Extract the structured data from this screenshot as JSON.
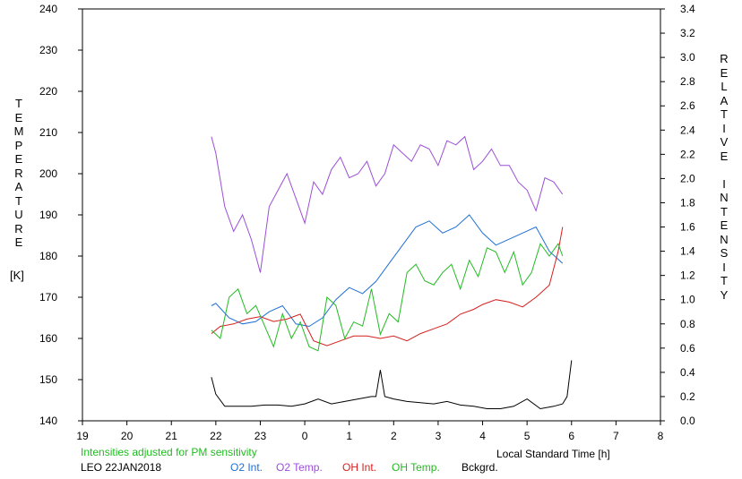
{
  "chart_data": {
    "type": "line",
    "xlabel": "Local Standard Time [h]",
    "ylabel_left": "TEMPERATURE",
    "ylabel_left_unit": "[K]",
    "ylabel_right": "RELATIVE INTENSITY",
    "x_ticks": [
      "19",
      "20",
      "21",
      "22",
      "23",
      "0",
      "1",
      "2",
      "3",
      "4",
      "5",
      "6",
      "7",
      "8"
    ],
    "y_left_ticks": [
      "140",
      "150",
      "160",
      "170",
      "180",
      "190",
      "200",
      "210",
      "220",
      "230",
      "240"
    ],
    "y_right_ticks": [
      "0.0",
      "0.2",
      "0.4",
      "0.6",
      "0.8",
      "1.0",
      "1.2",
      "1.4",
      "1.6",
      "1.8",
      "2.0",
      "2.2",
      "2.4",
      "2.6",
      "2.8",
      "3.0",
      "3.2",
      "3.4"
    ],
    "xlim": [
      19,
      32
    ],
    "ylim_left": [
      140,
      240
    ],
    "ylim_right": [
      0,
      3.4
    ],
    "grid": false,
    "series": [
      {
        "name": "O2 Int.",
        "axis": "right",
        "color": "#1f6fd6",
        "x": [
          21.9,
          22.0,
          22.3,
          22.6,
          22.9,
          23.2,
          23.5,
          23.8,
          24.1,
          24.4,
          24.7,
          25.0,
          25.3,
          25.6,
          25.9,
          26.2,
          26.5,
          26.8,
          27.1,
          27.4,
          27.7,
          28.0,
          28.3,
          28.6,
          28.9,
          29.2,
          29.5,
          29.8
        ],
        "y": [
          0.95,
          0.97,
          0.85,
          0.8,
          0.82,
          0.9,
          0.95,
          0.8,
          0.78,
          0.85,
          1.0,
          1.1,
          1.05,
          1.15,
          1.3,
          1.45,
          1.6,
          1.65,
          1.55,
          1.6,
          1.7,
          1.55,
          1.45,
          1.5,
          1.55,
          1.6,
          1.4,
          1.3
        ]
      },
      {
        "name": "O2 Temp.",
        "axis": "left",
        "color": "#9b4fd6",
        "x": [
          21.9,
          22.0,
          22.2,
          22.4,
          22.6,
          22.8,
          23.0,
          23.2,
          23.4,
          23.6,
          23.8,
          24.0,
          24.2,
          24.4,
          24.6,
          24.8,
          25.0,
          25.2,
          25.4,
          25.6,
          25.8,
          26.0,
          26.2,
          26.4,
          26.6,
          26.8,
          27.0,
          27.2,
          27.4,
          27.6,
          27.8,
          28.0,
          28.2,
          28.4,
          28.6,
          28.8,
          29.0,
          29.2,
          29.4,
          29.6,
          29.8
        ],
        "y": [
          209,
          205,
          192,
          186,
          190,
          184,
          176,
          192,
          196,
          200,
          194,
          188,
          198,
          195,
          201,
          204,
          199,
          200,
          203,
          197,
          200,
          207,
          205,
          203,
          207,
          206,
          202,
          208,
          207,
          209,
          201,
          203,
          206,
          202,
          202,
          198,
          196,
          191,
          199,
          198,
          195
        ]
      },
      {
        "name": "OH Int.",
        "axis": "right",
        "color": "#d61f1f",
        "x": [
          21.9,
          22.1,
          22.4,
          22.7,
          23.0,
          23.3,
          23.6,
          23.9,
          24.2,
          24.5,
          24.8,
          25.1,
          25.4,
          25.7,
          26.0,
          26.3,
          26.6,
          26.9,
          27.2,
          27.5,
          27.8,
          28.0,
          28.3,
          28.6,
          28.9,
          29.2,
          29.5,
          29.7,
          29.8
        ],
        "y": [
          0.72,
          0.78,
          0.8,
          0.84,
          0.86,
          0.82,
          0.84,
          0.88,
          0.66,
          0.62,
          0.66,
          0.7,
          0.7,
          0.68,
          0.7,
          0.66,
          0.72,
          0.76,
          0.8,
          0.88,
          0.92,
          0.96,
          1.0,
          0.98,
          0.94,
          1.02,
          1.12,
          1.4,
          1.6
        ]
      },
      {
        "name": "OH Temp.",
        "axis": "left",
        "color": "#22bb22",
        "x": [
          21.9,
          22.1,
          22.3,
          22.5,
          22.7,
          22.9,
          23.1,
          23.3,
          23.5,
          23.7,
          23.9,
          24.1,
          24.3,
          24.5,
          24.7,
          24.9,
          25.1,
          25.3,
          25.5,
          25.7,
          25.9,
          26.1,
          26.3,
          26.5,
          26.7,
          26.9,
          27.1,
          27.3,
          27.5,
          27.7,
          27.9,
          28.1,
          28.3,
          28.5,
          28.7,
          28.9,
          29.1,
          29.3,
          29.5,
          29.7,
          29.8
        ],
        "y": [
          162,
          160,
          170,
          172,
          166,
          168,
          163,
          158,
          166,
          160,
          164,
          158,
          157,
          170,
          168,
          160,
          164,
          163,
          172,
          161,
          166,
          164,
          176,
          178,
          174,
          173,
          176,
          178,
          172,
          179,
          175,
          182,
          181,
          176,
          181,
          173,
          176,
          183,
          180,
          183,
          180
        ]
      },
      {
        "name": "Bckgrd.",
        "axis": "right",
        "color": "#000000",
        "x": [
          21.9,
          22.0,
          22.2,
          22.5,
          22.8,
          23.1,
          23.4,
          23.7,
          24.0,
          24.3,
          24.6,
          24.9,
          25.2,
          25.5,
          25.6,
          25.7,
          25.8,
          26.0,
          26.3,
          26.6,
          26.9,
          27.2,
          27.5,
          27.8,
          28.1,
          28.4,
          28.7,
          29.0,
          29.3,
          29.6,
          29.8,
          29.9,
          30.0
        ],
        "y": [
          0.36,
          0.22,
          0.12,
          0.12,
          0.12,
          0.13,
          0.13,
          0.12,
          0.14,
          0.18,
          0.14,
          0.16,
          0.18,
          0.2,
          0.2,
          0.42,
          0.2,
          0.18,
          0.16,
          0.15,
          0.14,
          0.16,
          0.13,
          0.12,
          0.1,
          0.1,
          0.12,
          0.18,
          0.1,
          0.12,
          0.14,
          0.2,
          0.5
        ]
      }
    ],
    "notes": {
      "intensity_note": "Intensities adjusted for PM sensitivity",
      "site_date": "LEO 22JAN2018"
    }
  }
}
